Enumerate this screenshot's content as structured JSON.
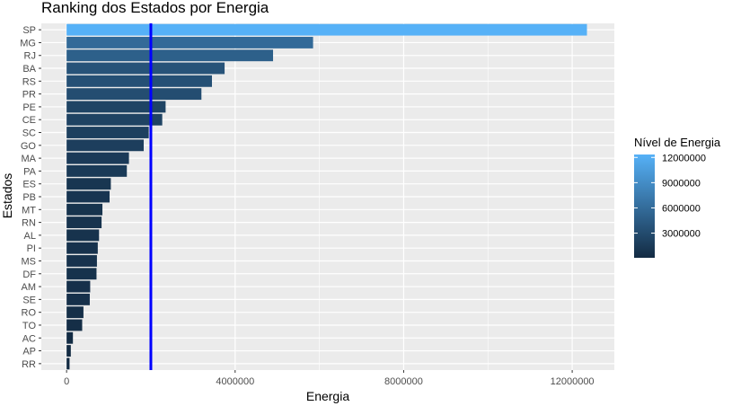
{
  "chart_data": {
    "type": "bar",
    "orientation": "horizontal",
    "title": "Ranking dos Estados por Energia",
    "xlabel": "Energia",
    "ylabel": "Estados",
    "xlim": [
      -600000,
      13000000
    ],
    "xticks": [
      0,
      4000000,
      8000000,
      12000000
    ],
    "xtick_labels": [
      "0",
      "4000000",
      "8000000",
      "12000000"
    ],
    "reference_line": {
      "x": 2000000,
      "color": "#0000ff"
    },
    "categories": [
      "SP",
      "MG",
      "RJ",
      "BA",
      "RS",
      "PR",
      "PE",
      "CE",
      "SC",
      "GO",
      "MA",
      "PA",
      "ES",
      "PB",
      "MT",
      "RN",
      "AL",
      "PI",
      "MS",
      "DF",
      "AM",
      "SE",
      "RO",
      "TO",
      "AC",
      "AP",
      "RR"
    ],
    "values": [
      12350000,
      5850000,
      4900000,
      3750000,
      3450000,
      3200000,
      2350000,
      2270000,
      1950000,
      1830000,
      1480000,
      1430000,
      1050000,
      1020000,
      850000,
      830000,
      770000,
      740000,
      720000,
      710000,
      560000,
      550000,
      400000,
      370000,
      150000,
      100000,
      70000
    ],
    "legend": {
      "title": "Nível de Energia",
      "placement": "right",
      "type": "colorbar",
      "breaks": [
        3000000,
        6000000,
        9000000,
        12000000
      ],
      "labels": [
        "3000000",
        "6000000",
        "9000000",
        "12000000"
      ],
      "range": [
        70000,
        12350000
      ],
      "color_low": "#132b43",
      "color_high": "#56b1f7"
    },
    "panel_background": "#ebebeb",
    "grid": true
  }
}
